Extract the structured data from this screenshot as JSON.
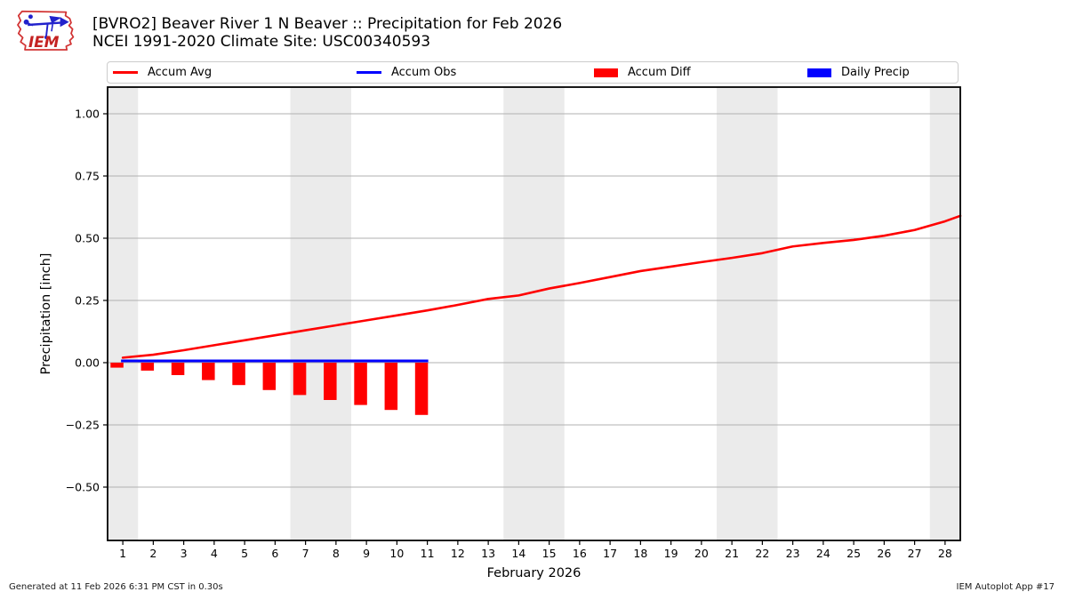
{
  "header": {
    "title": "[BVRO2] Beaver River 1 N Beaver :: Precipitation for Feb 2026",
    "subtitle": "NCEI 1991-2020 Climate Site: USC00340593",
    "logo_text": "IEM"
  },
  "legend": {
    "items": [
      {
        "label": "Accum Avg",
        "swatch": "line",
        "color": "#ff0000"
      },
      {
        "label": "Accum Obs",
        "swatch": "line",
        "color": "#0000ff"
      },
      {
        "label": "Accum Diff",
        "swatch": "rect",
        "color": "#ff0000"
      },
      {
        "label": "Daily Precip",
        "swatch": "rect",
        "color": "#0000ff"
      }
    ]
  },
  "footer": {
    "left": "Generated at 11 Feb 2026 6:31 PM CST in 0.30s",
    "right": "IEM Autoplot App #17"
  },
  "chart_data": {
    "type": "line+bar",
    "title": "[BVRO2] Beaver River 1 N Beaver :: Precipitation for Feb 2026",
    "subtitle": "NCEI 1991-2020 Climate Site: USC00340593",
    "xlabel": "February 2026",
    "ylabel": "Precipitation [inch]",
    "xlim": [
      0.5,
      28.5
    ],
    "ylim": [
      -0.7143,
      1.1071
    ],
    "grid": true,
    "grid_color": "#b0b0b0",
    "band_color": "#ebebeb",
    "weekend_bands": [
      [
        0.5,
        1.5
      ],
      [
        6.5,
        8.5
      ],
      [
        13.5,
        15.5
      ],
      [
        20.5,
        22.5
      ],
      [
        27.5,
        28.5
      ]
    ],
    "xticks": [
      1,
      2,
      3,
      4,
      5,
      6,
      7,
      8,
      9,
      10,
      11,
      12,
      13,
      14,
      15,
      16,
      17,
      18,
      19,
      20,
      21,
      22,
      23,
      24,
      25,
      26,
      27,
      28
    ],
    "yticks": [
      1.0,
      0.75,
      0.5,
      0.25,
      0.0,
      -0.25,
      -0.5
    ],
    "ytick_labels": [
      "1.00",
      "0.75",
      "0.50",
      "0.25",
      "0.00",
      "−0.25",
      "−0.50"
    ],
    "series": [
      {
        "name": "Accum Avg",
        "type": "line",
        "color": "#ff0000",
        "x": [
          1,
          2,
          3,
          4,
          5,
          6,
          7,
          8,
          9,
          10,
          11,
          12,
          13,
          14,
          15,
          16,
          17,
          18,
          19,
          20,
          21,
          22,
          23,
          24,
          25,
          26,
          27,
          28,
          28.5
        ],
        "y": [
          0.02,
          0.032,
          0.05,
          0.07,
          0.09,
          0.11,
          0.13,
          0.15,
          0.17,
          0.19,
          0.21,
          0.232,
          0.256,
          0.27,
          0.298,
          0.32,
          0.344,
          0.368,
          0.386,
          0.404,
          0.421,
          0.44,
          0.467,
          0.481,
          0.493,
          0.51,
          0.533,
          0.568,
          0.59
        ]
      },
      {
        "name": "Accum Obs",
        "type": "line",
        "color": "#0000ff",
        "x": [
          1,
          11
        ],
        "y": [
          0.0,
          0.0
        ]
      },
      {
        "name": "Accum Diff",
        "type": "bar",
        "color": "#ff0000",
        "x": [
          1,
          2,
          3,
          4,
          5,
          6,
          7,
          8,
          9,
          10,
          11
        ],
        "y": [
          -0.02,
          -0.032,
          -0.05,
          -0.07,
          -0.09,
          -0.11,
          -0.13,
          -0.15,
          -0.17,
          -0.19,
          -0.21
        ]
      },
      {
        "name": "Daily Precip",
        "type": "bar",
        "color": "#0000ff",
        "x": [],
        "y": []
      }
    ]
  }
}
